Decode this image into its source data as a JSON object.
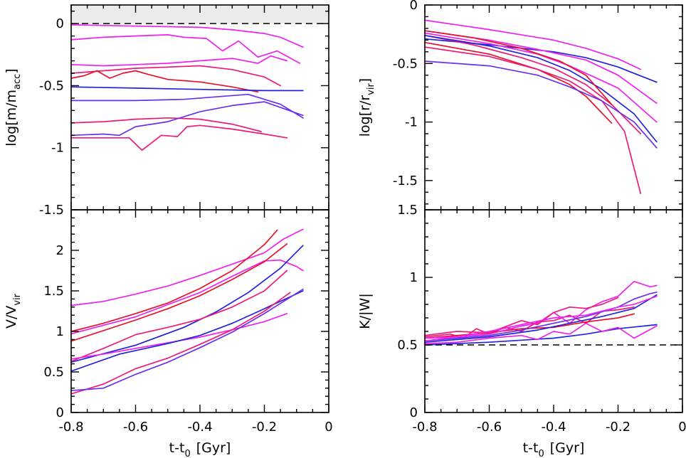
{
  "colors": {
    "magenta": "#ee22ee",
    "red": "#e8102a",
    "pink": "#ee1a78",
    "blue": "#2222dd",
    "purple": "#6a30ee",
    "shade": "#ebebeb"
  },
  "chart_data": [
    {
      "type": "line",
      "panel": "top-left",
      "xlabel": "t-t",
      "xlabel_sub": "0",
      "xlabel_unit": "[Gyr]",
      "ylabel": "log[m/m",
      "ylabel_sub": "acc",
      "ylabel_end": "]",
      "xlim": [
        -0.8,
        0
      ],
      "ylim": [
        -1.5,
        0.15
      ],
      "yticks": [
        "0",
        "-0.5",
        "-1",
        "-1.5"
      ],
      "ytick_values": [
        0,
        -0.5,
        -1,
        -1.5
      ],
      "reference_line": 0,
      "shaded_above": 0,
      "series": [
        {
          "color": "magenta",
          "x": [
            -0.8,
            -0.6,
            -0.4,
            -0.3,
            -0.2,
            -0.15,
            -0.08
          ],
          "y": [
            -0.01,
            -0.02,
            -0.03,
            -0.05,
            -0.08,
            -0.11,
            -0.19
          ]
        },
        {
          "color": "magenta",
          "x": [
            -0.8,
            -0.7,
            -0.6,
            -0.5,
            -0.45,
            -0.38,
            -0.33,
            -0.28,
            -0.22,
            -0.16,
            -0.09
          ],
          "y": [
            -0.13,
            -0.11,
            -0.1,
            -0.09,
            -0.11,
            -0.12,
            -0.22,
            -0.14,
            -0.27,
            -0.22,
            -0.32
          ]
        },
        {
          "color": "magenta",
          "x": [
            -0.8,
            -0.7,
            -0.6,
            -0.5,
            -0.4,
            -0.3,
            -0.22,
            -0.18,
            -0.13
          ],
          "y": [
            -0.33,
            -0.34,
            -0.33,
            -0.32,
            -0.3,
            -0.28,
            -0.32,
            -0.26,
            -0.3
          ]
        },
        {
          "color": "pink",
          "x": [
            -0.8,
            -0.7,
            -0.6,
            -0.5,
            -0.4,
            -0.3,
            -0.2,
            -0.15
          ],
          "y": [
            -0.4,
            -0.38,
            -0.36,
            -0.35,
            -0.34,
            -0.37,
            -0.43,
            -0.5
          ]
        },
        {
          "color": "red",
          "x": [
            -0.8,
            -0.76,
            -0.72,
            -0.68,
            -0.64,
            -0.6,
            -0.56,
            -0.5,
            -0.4,
            -0.3,
            -0.22
          ],
          "y": [
            -0.44,
            -0.42,
            -0.38,
            -0.44,
            -0.4,
            -0.38,
            -0.41,
            -0.45,
            -0.47,
            -0.51,
            -0.55
          ]
        },
        {
          "color": "blue",
          "x": [
            -0.8,
            -0.6,
            -0.4,
            -0.2,
            -0.08
          ],
          "y": [
            -0.51,
            -0.52,
            -0.53,
            -0.54,
            -0.54
          ]
        },
        {
          "color": "purple",
          "x": [
            -0.8,
            -0.6,
            -0.45,
            -0.35,
            -0.25,
            -0.15,
            -0.08
          ],
          "y": [
            -0.62,
            -0.62,
            -0.61,
            -0.59,
            -0.57,
            -0.65,
            -0.76
          ]
        },
        {
          "color": "pink",
          "x": [
            -0.8,
            -0.7,
            -0.6,
            -0.5,
            -0.4,
            -0.3,
            -0.21
          ],
          "y": [
            -0.8,
            -0.79,
            -0.77,
            -0.76,
            -0.77,
            -0.81,
            -0.87
          ]
        },
        {
          "color": "purple",
          "x": [
            -0.8,
            -0.7,
            -0.65,
            -0.6,
            -0.55,
            -0.5,
            -0.4,
            -0.3,
            -0.2,
            -0.08
          ],
          "y": [
            -0.9,
            -0.89,
            -0.9,
            -0.83,
            -0.81,
            -0.79,
            -0.71,
            -0.66,
            -0.63,
            -0.74
          ]
        },
        {
          "color": "pink",
          "x": [
            -0.8,
            -0.7,
            -0.62,
            -0.58,
            -0.52,
            -0.47,
            -0.44,
            -0.4,
            -0.3,
            -0.2,
            -0.13
          ],
          "y": [
            -0.92,
            -0.92,
            -0.92,
            -1.02,
            -0.9,
            -0.91,
            -0.83,
            -0.82,
            -0.85,
            -0.89,
            -0.92
          ]
        }
      ]
    },
    {
      "type": "line",
      "panel": "top-right",
      "xlabel": "t-t",
      "xlabel_sub": "0",
      "xlabel_unit": "[Gyr]",
      "ylabel": "log[r/r",
      "ylabel_sub": "vir",
      "ylabel_end": "]",
      "xlim": [
        -0.8,
        0
      ],
      "ylim": [
        -1.75,
        0
      ],
      "yticks": [
        "0",
        "-0.5",
        "-1",
        "-1.5"
      ],
      "ytick_values": [
        0,
        -0.5,
        -1,
        -1.5
      ],
      "series": [
        {
          "color": "magenta",
          "x": [
            -0.8,
            -0.6,
            -0.4,
            -0.3,
            -0.2,
            -0.13
          ],
          "y": [
            -0.13,
            -0.21,
            -0.3,
            -0.37,
            -0.46,
            -0.55
          ]
        },
        {
          "color": "blue",
          "x": [
            -0.8,
            -0.6,
            -0.4,
            -0.3,
            -0.2,
            -0.08
          ],
          "y": [
            -0.29,
            -0.34,
            -0.4,
            -0.45,
            -0.53,
            -0.66
          ]
        },
        {
          "color": "magenta",
          "x": [
            -0.8,
            -0.6,
            -0.45,
            -0.3,
            -0.2,
            -0.08
          ],
          "y": [
            -0.22,
            -0.3,
            -0.38,
            -0.47,
            -0.6,
            -0.84
          ]
        },
        {
          "color": "red",
          "x": [
            -0.8,
            -0.6,
            -0.45,
            -0.35,
            -0.3,
            -0.22
          ],
          "y": [
            -0.32,
            -0.42,
            -0.55,
            -0.68,
            -0.78,
            -1.01
          ]
        },
        {
          "color": "pink",
          "x": [
            -0.8,
            -0.65,
            -0.5,
            -0.4,
            -0.3,
            -0.22,
            -0.13
          ],
          "y": [
            -0.26,
            -0.34,
            -0.45,
            -0.54,
            -0.68,
            -0.85,
            -1.1
          ]
        },
        {
          "color": "pink",
          "x": [
            -0.8,
            -0.6,
            -0.45,
            -0.35,
            -0.25,
            -0.18,
            -0.13
          ],
          "y": [
            -0.36,
            -0.44,
            -0.55,
            -0.65,
            -0.82,
            -1.08,
            -1.61
          ]
        },
        {
          "color": "magenta",
          "x": [
            -0.8,
            -0.6,
            -0.45,
            -0.35,
            -0.2,
            -0.08
          ],
          "y": [
            -0.24,
            -0.33,
            -0.42,
            -0.52,
            -0.71,
            -1.0
          ]
        },
        {
          "color": "purple",
          "x": [
            -0.8,
            -0.6,
            -0.45,
            -0.35,
            -0.25,
            -0.15,
            -0.08
          ],
          "y": [
            -0.48,
            -0.52,
            -0.6,
            -0.7,
            -0.82,
            -1.0,
            -1.22
          ]
        },
        {
          "color": "blue",
          "x": [
            -0.8,
            -0.6,
            -0.45,
            -0.35,
            -0.25,
            -0.15,
            -0.08
          ],
          "y": [
            -0.26,
            -0.35,
            -0.45,
            -0.56,
            -0.72,
            -0.93,
            -1.17
          ]
        },
        {
          "color": "red",
          "x": [
            -0.8,
            -0.65,
            -0.5,
            -0.38,
            -0.3,
            -0.22
          ],
          "y": [
            -0.22,
            -0.28,
            -0.37,
            -0.48,
            -0.6,
            -0.85
          ]
        }
      ]
    },
    {
      "type": "line",
      "panel": "bottom-left",
      "xlabel": "t-t",
      "xlabel_sub": "0",
      "xlabel_unit": "[Gyr]",
      "ylabel": "V/V",
      "ylabel_sub": "vir",
      "ylabel_end": "",
      "xticks": [
        "-0.8",
        "-0.6",
        "-0.4",
        "-0.2",
        "0"
      ],
      "xtick_values": [
        -0.8,
        -0.6,
        -0.4,
        -0.2,
        0
      ],
      "xlim": [
        -0.8,
        0
      ],
      "ylim": [
        0,
        2.5
      ],
      "yticks": [
        "0",
        "0.5",
        "1",
        "1.5",
        "2"
      ],
      "ytick_values": [
        0,
        0.5,
        1,
        1.5,
        2
      ],
      "series": [
        {
          "color": "magenta",
          "x": [
            -0.8,
            -0.7,
            -0.6,
            -0.5,
            -0.4,
            -0.3,
            -0.2,
            -0.14,
            -0.08
          ],
          "y": [
            1.32,
            1.37,
            1.46,
            1.56,
            1.69,
            1.83,
            1.97,
            2.14,
            2.26
          ]
        },
        {
          "color": "magenta",
          "x": [
            -0.8,
            -0.6,
            -0.4,
            -0.3,
            -0.2,
            -0.15,
            -0.1,
            -0.08
          ],
          "y": [
            0.97,
            1.18,
            1.48,
            1.68,
            1.87,
            1.88,
            1.8,
            1.75
          ]
        },
        {
          "color": "red",
          "x": [
            -0.8,
            -0.7,
            -0.6,
            -0.5,
            -0.4,
            -0.3,
            -0.2,
            -0.16
          ],
          "y": [
            1.0,
            1.1,
            1.22,
            1.35,
            1.53,
            1.75,
            2.07,
            2.25
          ]
        },
        {
          "color": "red",
          "x": [
            -0.8,
            -0.6,
            -0.5,
            -0.4,
            -0.3,
            -0.2,
            -0.13
          ],
          "y": [
            0.88,
            1.14,
            1.28,
            1.44,
            1.64,
            1.86,
            2.08
          ]
        },
        {
          "color": "blue",
          "x": [
            -0.8,
            -0.6,
            -0.45,
            -0.35,
            -0.25,
            -0.15,
            -0.08
          ],
          "y": [
            0.62,
            0.83,
            1.05,
            1.24,
            1.48,
            1.78,
            2.06
          ]
        },
        {
          "color": "pink",
          "x": [
            -0.8,
            -0.7,
            -0.6,
            -0.5,
            -0.4,
            -0.3,
            -0.2,
            -0.13
          ],
          "y": [
            0.63,
            0.79,
            0.96,
            1.05,
            1.15,
            1.3,
            1.5,
            1.75
          ]
        },
        {
          "color": "magenta",
          "x": [
            -0.8,
            -0.7,
            -0.6,
            -0.5,
            -0.4,
            -0.3,
            -0.2,
            -0.13
          ],
          "y": [
            0.66,
            0.72,
            0.79,
            0.86,
            0.93,
            1.02,
            1.12,
            1.22
          ]
        },
        {
          "color": "blue",
          "x": [
            -0.8,
            -0.65,
            -0.5,
            -0.4,
            -0.3,
            -0.2,
            -0.08
          ],
          "y": [
            0.51,
            0.72,
            0.85,
            0.95,
            1.1,
            1.28,
            1.5
          ]
        },
        {
          "color": "pink",
          "x": [
            -0.8,
            -0.7,
            -0.6,
            -0.5,
            -0.4,
            -0.3,
            -0.2,
            -0.12
          ],
          "y": [
            0.23,
            0.35,
            0.54,
            0.67,
            0.84,
            1.02,
            1.25,
            1.48
          ]
        },
        {
          "color": "purple",
          "x": [
            -0.8,
            -0.7,
            -0.6,
            -0.5,
            -0.4,
            -0.3,
            -0.2,
            -0.08
          ],
          "y": [
            0.27,
            0.3,
            0.47,
            0.62,
            0.8,
            0.99,
            1.22,
            1.52
          ]
        }
      ]
    },
    {
      "type": "line",
      "panel": "bottom-right",
      "xlabel": "t-t",
      "xlabel_sub": "0",
      "xlabel_unit": "[Gyr]",
      "ylabel": "K/|W|",
      "ylabel_sub": "",
      "ylabel_end": "",
      "xticks": [
        "-0.8",
        "-0.6",
        "-0.4",
        "-0.2",
        "0"
      ],
      "xtick_values": [
        -0.8,
        -0.6,
        -0.4,
        -0.2,
        0
      ],
      "xlim": [
        -0.8,
        0
      ],
      "ylim": [
        0,
        1.5
      ],
      "yticks": [
        "0",
        "0.5",
        "1",
        "1.5"
      ],
      "ytick_values": [
        0,
        0.5,
        1,
        1.5
      ],
      "reference_line": 0.5,
      "series": [
        {
          "color": "blue",
          "x": [
            -0.8,
            -0.6,
            -0.4,
            -0.3,
            -0.2,
            -0.08
          ],
          "y": [
            0.5,
            0.52,
            0.55,
            0.58,
            0.62,
            0.65
          ]
        },
        {
          "color": "magenta",
          "x": [
            -0.8,
            -0.7,
            -0.6,
            -0.5,
            -0.45,
            -0.4,
            -0.35,
            -0.3,
            -0.25,
            -0.2,
            -0.15,
            -0.08
          ],
          "y": [
            0.51,
            0.52,
            0.55,
            0.57,
            0.54,
            0.6,
            0.58,
            0.66,
            0.6,
            0.63,
            0.55,
            0.64
          ]
        },
        {
          "color": "pink",
          "x": [
            -0.8,
            -0.72,
            -0.68,
            -0.64,
            -0.6,
            -0.55,
            -0.5,
            -0.45,
            -0.4,
            -0.35,
            -0.3,
            -0.25,
            -0.2,
            -0.15
          ],
          "y": [
            0.56,
            0.58,
            0.55,
            0.62,
            0.58,
            0.63,
            0.6,
            0.67,
            0.68,
            0.72,
            0.66,
            0.75,
            0.76,
            0.78
          ]
        },
        {
          "color": "red",
          "x": [
            -0.8,
            -0.7,
            -0.6,
            -0.5,
            -0.4,
            -0.3,
            -0.2,
            -0.15
          ],
          "y": [
            0.55,
            0.57,
            0.59,
            0.62,
            0.63,
            0.67,
            0.7,
            0.73
          ]
        },
        {
          "color": "magenta",
          "x": [
            -0.8,
            -0.7,
            -0.6,
            -0.5,
            -0.45,
            -0.4,
            -0.35,
            -0.3,
            -0.25,
            -0.2,
            -0.15,
            -0.1,
            -0.08
          ],
          "y": [
            0.55,
            0.56,
            0.58,
            0.64,
            0.66,
            0.74,
            0.66,
            0.76,
            0.82,
            0.86,
            0.97,
            0.93,
            0.94
          ]
        },
        {
          "color": "purple",
          "x": [
            -0.8,
            -0.7,
            -0.6,
            -0.5,
            -0.4,
            -0.3,
            -0.2,
            -0.15,
            -0.1,
            -0.08
          ],
          "y": [
            0.53,
            0.55,
            0.57,
            0.61,
            0.66,
            0.71,
            0.78,
            0.84,
            0.88,
            0.89
          ]
        },
        {
          "color": "blue",
          "x": [
            -0.8,
            -0.6,
            -0.45,
            -0.35,
            -0.25,
            -0.15,
            -0.08
          ],
          "y": [
            0.52,
            0.56,
            0.61,
            0.66,
            0.71,
            0.77,
            0.87
          ]
        },
        {
          "color": "pink",
          "x": [
            -0.8,
            -0.7,
            -0.6,
            -0.5,
            -0.45,
            -0.4,
            -0.35,
            -0.3,
            -0.25,
            -0.2
          ],
          "y": [
            0.57,
            0.6,
            0.59,
            0.68,
            0.65,
            0.74,
            0.78,
            0.77,
            0.8,
            0.85
          ]
        },
        {
          "color": "magenta",
          "x": [
            -0.8,
            -0.7,
            -0.6,
            -0.5,
            -0.4,
            -0.3,
            -0.2,
            -0.15,
            -0.08
          ],
          "y": [
            0.53,
            0.56,
            0.6,
            0.65,
            0.7,
            0.72,
            0.78,
            0.8,
            0.86
          ]
        }
      ]
    }
  ]
}
